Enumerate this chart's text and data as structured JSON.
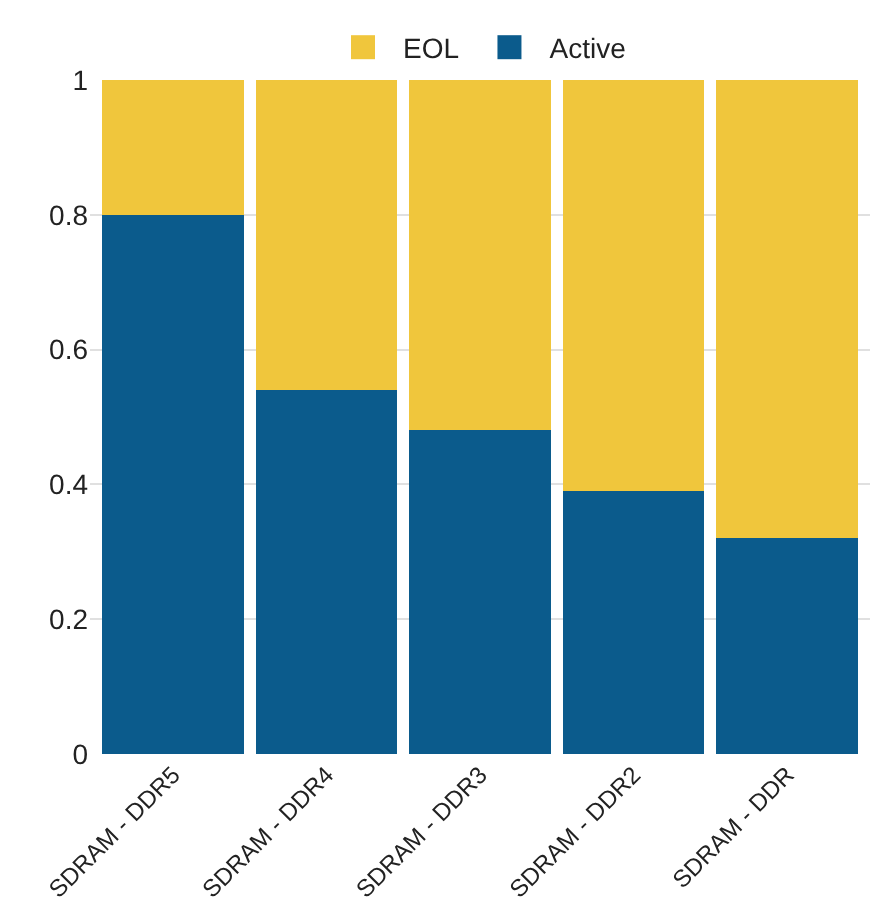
{
  "chart_data": {
    "type": "bar",
    "stacked": true,
    "categories": [
      "SDRAM - DDR5",
      "SDRAM - DDR4",
      "SDRAM - DDR3",
      "SDRAM - DDR2",
      "SDRAM - DDR"
    ],
    "series": [
      {
        "name": "Active",
        "color": "#0b5b8c",
        "values": [
          0.8,
          0.54,
          0.48,
          0.39,
          0.32
        ]
      },
      {
        "name": "EOL",
        "color": "#f0c63c",
        "values": [
          0.2,
          0.46,
          0.52,
          0.61,
          0.68
        ]
      }
    ],
    "ylim": [
      0,
      1
    ],
    "yticks": [
      0,
      0.2,
      0.4,
      0.6,
      0.8,
      1
    ],
    "grid": "y",
    "legend": "top"
  }
}
